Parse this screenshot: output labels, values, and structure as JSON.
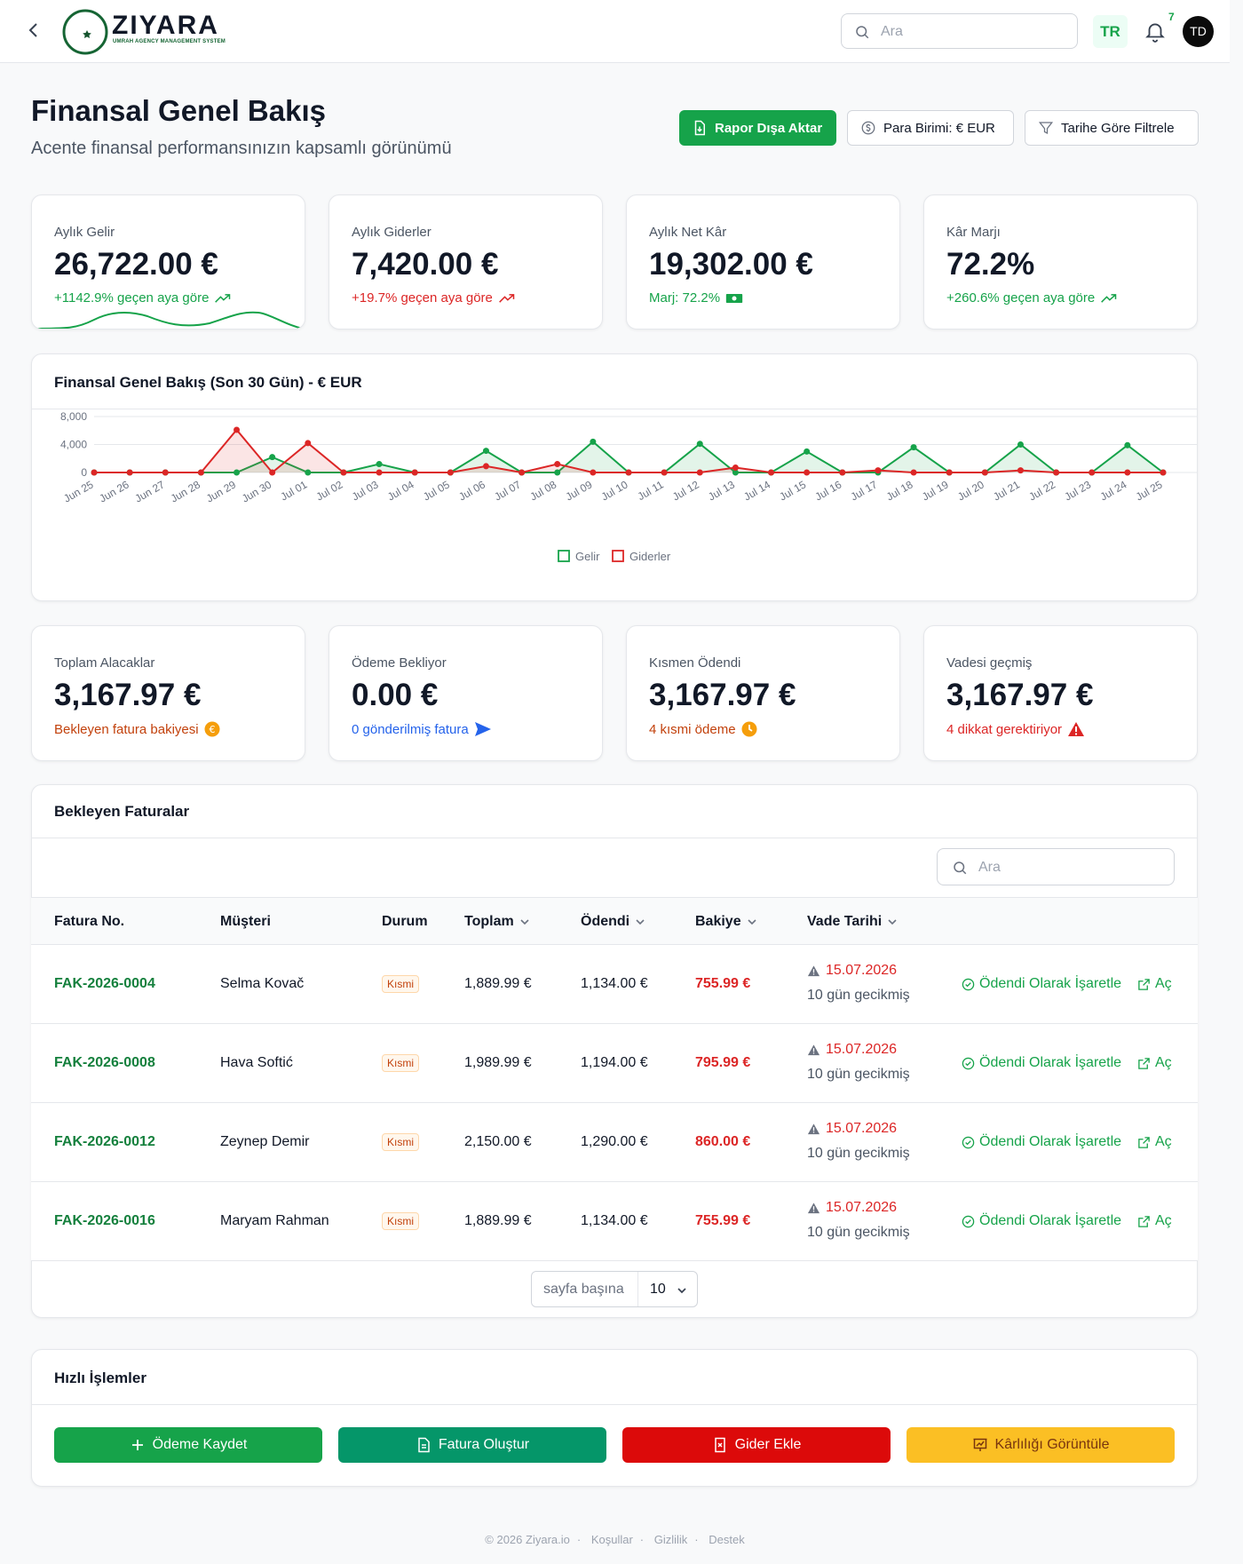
{
  "header": {
    "logo_text": "ZIYARA",
    "logo_sub": "UMRAH AGENCY MANAGEMENT SYSTEM",
    "search_placeholder": "Ara",
    "lang": "TR",
    "notif_count": "7",
    "avatar": "TD"
  },
  "page": {
    "title": "Finansal Genel Bakış",
    "subtitle": "Acente finansal performansınızın kapsamlı görünümü",
    "export_label": "Rapor Dışa Aktar",
    "currency_label": "Para Birimi: € EUR",
    "filter_label": "Tarihe Göre Filtrele"
  },
  "stats": [
    {
      "label": "Aylık Gelir",
      "value": "26,722.00 €",
      "note": "+1142.9% geçen aya göre"
    },
    {
      "label": "Aylık Giderler",
      "value": "7,420.00 €",
      "note": "+19.7% geçen aya göre"
    },
    {
      "label": "Aylık Net Kâr",
      "value": "19,302.00 €",
      "note": "Marj: 72.2%"
    },
    {
      "label": "Kâr Marjı",
      "value": "72.2%",
      "note": "+260.6% geçen aya göre"
    }
  ],
  "chart_section": {
    "title": "Finansal Genel Bakış (Son 30 Gün) - € EUR"
  },
  "chart_data": {
    "type": "line",
    "title": "Finansal Genel Bakış (Son 30 Gün) - € EUR",
    "x": [
      "Jun 25",
      "Jun 26",
      "Jun 27",
      "Jun 28",
      "Jun 29",
      "Jun 30",
      "Jul 01",
      "Jul 02",
      "Jul 03",
      "Jul 04",
      "Jul 05",
      "Jul 06",
      "Jul 07",
      "Jul 08",
      "Jul 09",
      "Jul 10",
      "Jul 11",
      "Jul 12",
      "Jul 13",
      "Jul 14",
      "Jul 15",
      "Jul 16",
      "Jul 17",
      "Jul 18",
      "Jul 19",
      "Jul 20",
      "Jul 21",
      "Jul 22",
      "Jul 23",
      "Jul 24",
      "Jul 25"
    ],
    "yticks": [
      "8,000",
      "4,000",
      "0"
    ],
    "ylim": [
      0,
      8000
    ],
    "series": [
      {
        "name": "Gelir",
        "color": "#16a34a",
        "values": [
          0,
          0,
          0,
          0,
          0,
          2200,
          0,
          0,
          1200,
          0,
          0,
          3100,
          0,
          0,
          4400,
          0,
          0,
          4100,
          0,
          0,
          3000,
          0,
          0,
          3600,
          0,
          0,
          4000,
          0,
          0,
          3900,
          0
        ]
      },
      {
        "name": "Giderler",
        "color": "#dc2626",
        "values": [
          0,
          0,
          0,
          0,
          6100,
          0,
          4200,
          0,
          0,
          0,
          0,
          900,
          0,
          1200,
          0,
          0,
          0,
          0,
          700,
          0,
          0,
          0,
          300,
          0,
          0,
          0,
          300,
          0,
          0,
          0,
          0
        ]
      }
    ],
    "legend": [
      "Gelir",
      "Giderler"
    ],
    "legend_position": "bottom",
    "grid": true
  },
  "receivables": [
    {
      "label": "Toplam Alacaklar",
      "value": "3,167.97 €",
      "note": "Bekleyen fatura bakiyesi"
    },
    {
      "label": "Ödeme Bekliyor",
      "value": "0.00 €",
      "note": "0 gönderilmiş fatura"
    },
    {
      "label": "Kısmen Ödendi",
      "value": "3,167.97 €",
      "note": "4 kısmi ödeme"
    },
    {
      "label": "Vadesi geçmiş",
      "value": "3,167.97 €",
      "note": "4 dikkat gerektiriyor"
    }
  ],
  "invoices": {
    "title": "Bekleyen Faturalar",
    "search_placeholder": "Ara",
    "columns": [
      "Fatura No.",
      "Müşteri",
      "Durum",
      "Toplam",
      "Ödendi",
      "Bakiye",
      "Vade Tarihi"
    ],
    "rows": [
      {
        "no": "FAK-2026-0004",
        "customer": "Selma Kovač",
        "status": "Kısmi",
        "total": "1,889.99 €",
        "paid": "1,134.00 €",
        "balance": "755.99 €",
        "due": "15.07.2026",
        "late": "10 gün gecikmiş"
      },
      {
        "no": "FAK-2026-0008",
        "customer": "Hava Softić",
        "status": "Kısmi",
        "total": "1,989.99 €",
        "paid": "1,194.00 €",
        "balance": "795.99 €",
        "due": "15.07.2026",
        "late": "10 gün gecikmiş"
      },
      {
        "no": "FAK-2026-0012",
        "customer": "Zeynep Demir",
        "status": "Kısmi",
        "total": "2,150.00 €",
        "paid": "1,290.00 €",
        "balance": "860.00 €",
        "due": "15.07.2026",
        "late": "10 gün gecikmiş"
      },
      {
        "no": "FAK-2026-0016",
        "customer": "Maryam Rahman",
        "status": "Kısmi",
        "total": "1,889.99 €",
        "paid": "1,134.00 €",
        "balance": "755.99 €",
        "due": "15.07.2026",
        "late": "10 gün gecikmiş"
      }
    ],
    "mark_paid_label": "Ödendi Olarak İşaretle",
    "open_label": "Aç",
    "per_page_label": "sayfa başına",
    "per_page_value": "10"
  },
  "quick_actions": {
    "title": "Hızlı İşlemler",
    "buttons": [
      {
        "label": "Ödeme Kaydet",
        "color": "#16a34a"
      },
      {
        "label": "Fatura Oluştur",
        "color": "#059669"
      },
      {
        "label": "Gider Ekle",
        "color": "#dc0a0a"
      },
      {
        "label": "Kârlılığı Görüntüle",
        "color": "#fbbf24"
      }
    ]
  },
  "footer": {
    "copyright": "© 2026 Ziyara.io",
    "terms": "Koşullar",
    "privacy": "Gizlilik",
    "support": "Destek"
  }
}
